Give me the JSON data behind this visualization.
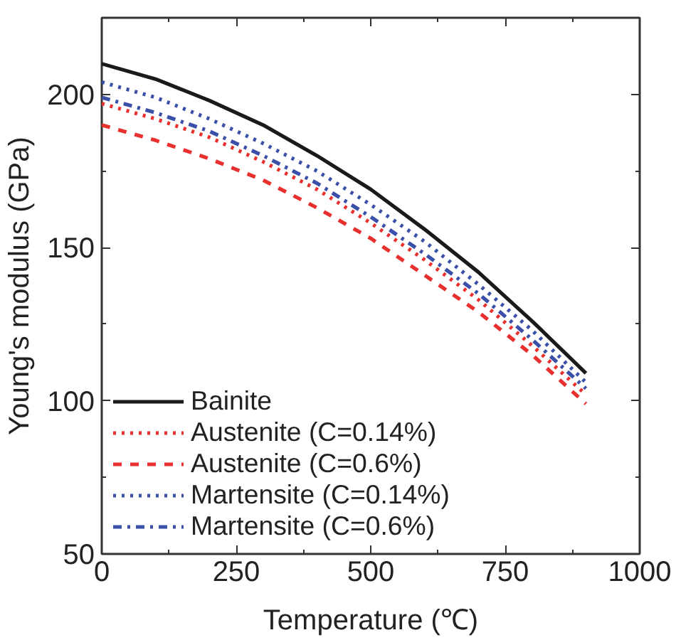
{
  "chart_data": {
    "type": "line",
    "xlabel": "Temperature (℃)",
    "ylabel": "Young's modulus (GPa)",
    "x": [
      0,
      100,
      200,
      300,
      400,
      500,
      600,
      700,
      800,
      900
    ],
    "xlim": [
      0,
      1000
    ],
    "xticks": [
      0,
      250,
      500,
      750,
      1000
    ],
    "ylim": [
      50,
      225
    ],
    "yticks": [
      50,
      100,
      150,
      200
    ],
    "grid": false,
    "legend": "bottom left",
    "marker": "none",
    "series": [
      {
        "name": "Bainite",
        "color": "#1a1a1a",
        "line_style": "solid",
        "values": [
          210,
          205,
          198,
          190,
          180,
          169,
          156,
          142,
          126,
          109
        ]
      },
      {
        "name": "Austenite (C=0.14%)",
        "color": "#e8302e",
        "line_style": "dotted",
        "values": [
          197,
          192,
          186,
          178,
          169,
          158,
          146,
          133,
          118,
          102
        ]
      },
      {
        "name": "Austenite (C=0.6%)",
        "color": "#e8302e",
        "line_style": "dashed",
        "values": [
          190,
          185,
          179,
          172,
          163,
          153,
          141,
          129,
          115,
          99
        ]
      },
      {
        "name": "Martensite (C=0.14%)",
        "color": "#3a4fa8",
        "line_style": "dotted",
        "values": [
          204,
          199,
          192,
          184,
          175,
          164,
          152,
          138,
          123,
          106
        ]
      },
      {
        "name": "Martensite (C=0.6%)",
        "color": "#3a4fa8",
        "line_style": "dashdot",
        "values": [
          199,
          194,
          188,
          180,
          171,
          160,
          148,
          135,
          120,
          104
        ]
      }
    ]
  }
}
